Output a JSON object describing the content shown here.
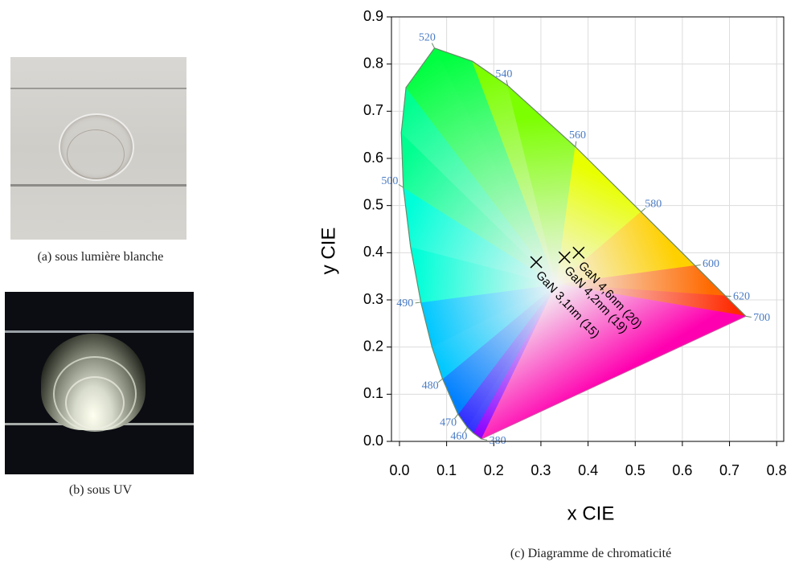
{
  "figure": {
    "photo_a_caption": "(a) sous lumière blanche",
    "photo_b_caption": "(b) sous UV",
    "chart_caption": "(c) Diagramme de chromaticité"
  },
  "chart_data": {
    "type": "scatter",
    "x_label": "x CIE",
    "y_label": "y CIE",
    "xlim": [
      -0.017,
      0.815
    ],
    "ylim": [
      0,
      0.9
    ],
    "xticks": [
      {
        "value": 0,
        "label": "0.0"
      },
      0.1,
      0.2,
      0.3,
      0.4,
      0.5,
      0.6,
      0.7,
      0.8
    ],
    "yticks": [
      {
        "value": 0,
        "label": "0.0"
      },
      0.1,
      0.2,
      0.3,
      0.4,
      0.5,
      0.6,
      0.7,
      0.8,
      0.9
    ],
    "grid": true,
    "marker": "x",
    "color": "#000000",
    "points": {
      "labels": [
        "GaN 3,1nm (15)",
        "GaN 4,2nm (19)",
        "GaN 4,6nm (20)"
      ],
      "x": [
        0.29,
        0.35,
        0.38
      ],
      "y": [
        0.38,
        0.39,
        0.4
      ]
    },
    "locus": {
      "label_color": "#4a7bc4",
      "white_point": [
        0.333,
        0.333
      ],
      "wavelengths": [
        380,
        null,
        460,
        470,
        480,
        null,
        490,
        null,
        500,
        null,
        null,
        520,
        null,
        540,
        560,
        580,
        600,
        620,
        700
      ],
      "x": [
        0.1741,
        0.1566,
        0.144,
        0.1241,
        0.0913,
        0.0687,
        0.0454,
        0.0235,
        0.0082,
        0.0039,
        0.0139,
        0.0743,
        0.1547,
        0.2296,
        0.3731,
        0.5125,
        0.627,
        0.6915,
        0.7347
      ],
      "y": [
        0.005,
        0.0177,
        0.0297,
        0.0578,
        0.1327,
        0.2007,
        0.295,
        0.4127,
        0.5384,
        0.6548,
        0.7502,
        0.8338,
        0.8059,
        0.7543,
        0.6245,
        0.4866,
        0.3725,
        0.3083,
        0.2653
      ]
    }
  }
}
